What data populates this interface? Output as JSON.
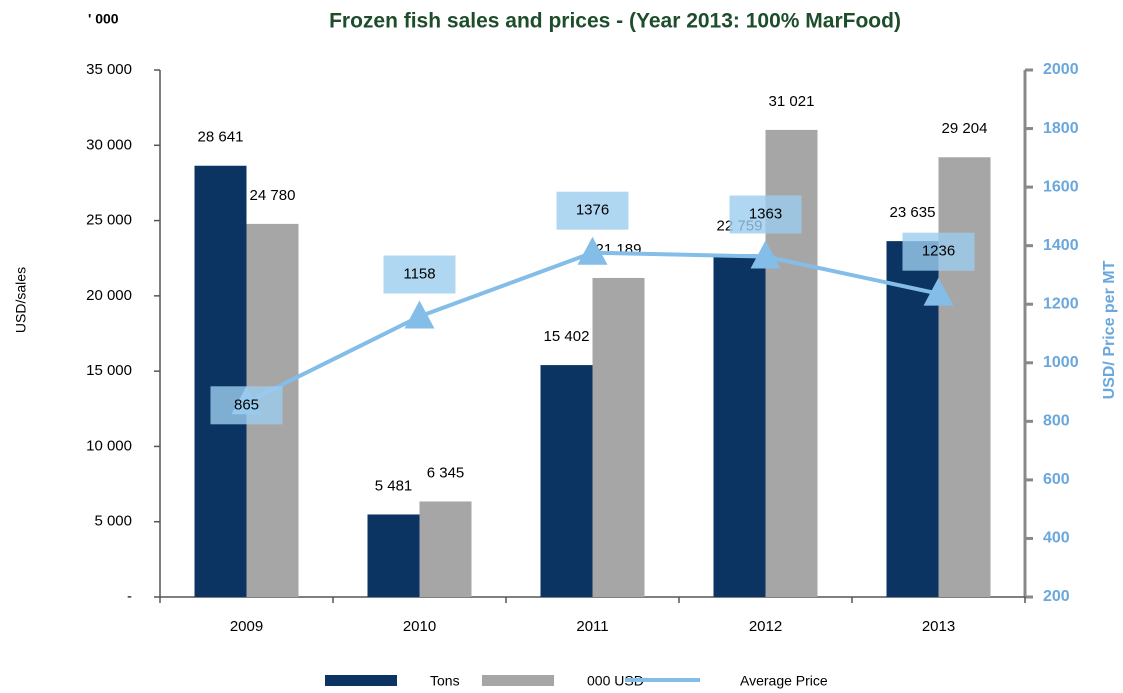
{
  "chart_data": {
    "type": "bar-line",
    "title": "Frozen fish sales and prices  -  (Year 2013: 100% MarFood)",
    "unit_note": "' 000",
    "y_label": "USD/sales",
    "y2_label": "USD/ Price  per MT",
    "categories": [
      "2009",
      "2010",
      "2011",
      "2012",
      "2013"
    ],
    "series": [
      {
        "name": "Tons",
        "type": "bar",
        "color": "#0b3463",
        "values": [
          28641,
          5481,
          15402,
          22759,
          23635
        ],
        "value_labels": [
          "28 641",
          "5 481",
          "15 402",
          "22 759",
          "23 635"
        ]
      },
      {
        "name": "000 USD",
        "type": "bar",
        "color": "#a6a6a6",
        "values": [
          24780,
          6345,
          21189,
          31021,
          29204
        ],
        "value_labels": [
          "24 780",
          "6 345",
          "21 189",
          "31 021",
          "29 204"
        ]
      },
      {
        "name": "Average Price",
        "type": "line",
        "axis": "y2",
        "color": "#84bde8",
        "values": [
          865,
          1158,
          1376,
          1363,
          1236
        ]
      }
    ],
    "ylim": [
      0,
      35000
    ],
    "yticks": [
      {
        "value": 0,
        "label": "-"
      },
      {
        "value": 5000,
        "label": "5 000"
      },
      {
        "value": 10000,
        "label": "10 000"
      },
      {
        "value": 15000,
        "label": "15 000"
      },
      {
        "value": 20000,
        "label": "20 000"
      },
      {
        "value": 25000,
        "label": "25 000"
      },
      {
        "value": 30000,
        "label": "30 000"
      },
      {
        "value": 35000,
        "label": "35 000"
      }
    ],
    "y2lim": [
      200,
      2000
    ],
    "y2ticks": [
      200,
      400,
      600,
      800,
      1000,
      1200,
      1400,
      1600,
      1800,
      2000
    ],
    "legend": "bottom"
  }
}
